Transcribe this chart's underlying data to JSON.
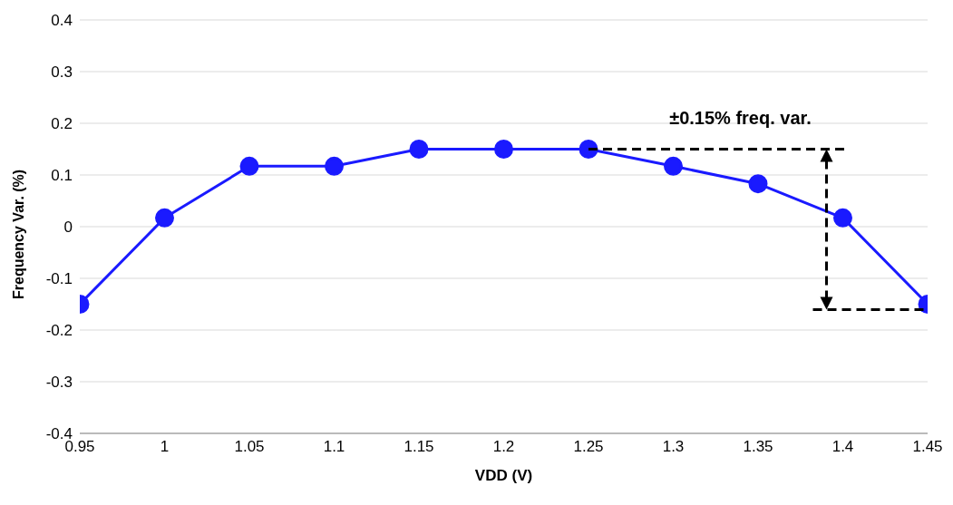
{
  "chart_data": {
    "type": "line",
    "xlabel": "VDD (V)",
    "ylabel": "Frequency Var. (%)",
    "x": [
      0.95,
      1,
      1.05,
      1.1,
      1.15,
      1.2,
      1.25,
      1.3,
      1.35,
      1.4,
      1.45
    ],
    "series": [
      {
        "color": "#1a1aff",
        "values": [
          -0.15,
          0.017,
          0.117,
          0.117,
          0.15,
          0.15,
          0.15,
          0.117,
          0.083,
          0.017,
          -0.15
        ]
      }
    ],
    "xlim": [
      0.95,
      1.45
    ],
    "xticks": [
      0.95,
      1,
      1.05,
      1.1,
      1.15,
      1.2,
      1.25,
      1.3,
      1.35,
      1.4,
      1.45
    ],
    "ylim": [
      -0.4,
      0.4
    ],
    "yticks": [
      -0.4,
      -0.3,
      -0.2,
      -0.1,
      0,
      0.1,
      0.2,
      0.3,
      0.4
    ],
    "grid": "y",
    "legend": false,
    "marker": "circle",
    "line_style": "solid",
    "annotations": [
      "±0.15% freq. var."
    ]
  }
}
